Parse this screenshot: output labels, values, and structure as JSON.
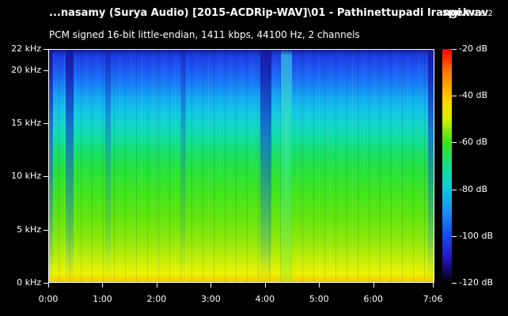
{
  "header": {
    "file_title": "...nasamy (Surya Audio) [2015-ACDRip-WAV]\\01 - Pathinettupadi Irangi.wav",
    "app_name": "spek",
    "app_version": "0.8.2",
    "stream_info": "PCM signed 16-bit little-endian, 1411 kbps, 44100 Hz, 2 channels"
  },
  "chart_data": {
    "type": "heatmap",
    "title": "",
    "frequency_axis": {
      "unit": "kHz",
      "range": [
        0,
        22
      ],
      "ticks": [
        {
          "value": 22,
          "label": "22 kHz"
        },
        {
          "value": 20,
          "label": "20 kHz"
        },
        {
          "value": 15,
          "label": "15 kHz"
        },
        {
          "value": 10,
          "label": "10 kHz"
        },
        {
          "value": 5,
          "label": "5 kHz"
        },
        {
          "value": 0,
          "label": "0 kHz"
        }
      ]
    },
    "time_axis": {
      "range_seconds": [
        0,
        426
      ],
      "ticks": [
        {
          "value": 0,
          "label": "0:00"
        },
        {
          "value": 60,
          "label": "1:00"
        },
        {
          "value": 120,
          "label": "2:00"
        },
        {
          "value": 180,
          "label": "3:00"
        },
        {
          "value": 240,
          "label": "4:00"
        },
        {
          "value": 300,
          "label": "5:00"
        },
        {
          "value": 360,
          "label": "6:00"
        },
        {
          "value": 426,
          "label": "7:06"
        }
      ]
    },
    "colorbar": {
      "unit": "dB",
      "range": [
        -120,
        -20
      ],
      "ticks": [
        {
          "value": -20,
          "label": "-20 dB"
        },
        {
          "value": -40,
          "label": "-40 dB"
        },
        {
          "value": -60,
          "label": "-60 dB"
        },
        {
          "value": -80,
          "label": "-80 dB"
        },
        {
          "value": -100,
          "label": "-100 dB"
        },
        {
          "value": -120,
          "label": "-120 dB"
        }
      ],
      "colors": [
        "#ff0000",
        "#ffd400",
        "#38e21a",
        "#12c7e2",
        "#1a48f0",
        "#2413b8",
        "#000000"
      ]
    }
  }
}
